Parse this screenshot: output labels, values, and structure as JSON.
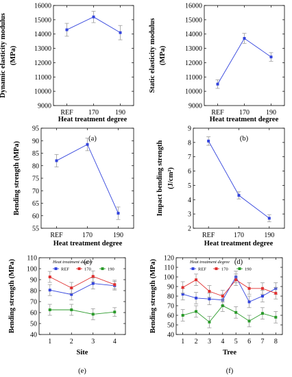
{
  "colors": {
    "series_blue": "#3344dd",
    "series_red": "#e03030",
    "series_green": "#2a9a2a",
    "error_bar": "#9a9a9a",
    "axis": "#000000"
  },
  "chart_data": [
    {
      "panel_label": "(a)",
      "type": "line",
      "xlabel": "Heat treatment degree",
      "ylabel": "Dynamic elasticity modulus (MPa)",
      "ylabel_lines": [
        "Dynamic elasticity modulus",
        "(MPa)"
      ],
      "categories": [
        "REF",
        "170",
        "190"
      ],
      "ylim": [
        9000,
        16000
      ],
      "yticks": [
        9000,
        10000,
        11000,
        12000,
        13000,
        14000,
        15000,
        16000
      ],
      "series": [
        {
          "values": [
            14300,
            15200,
            14100
          ],
          "err": [
            450,
            400,
            500
          ]
        }
      ]
    },
    {
      "panel_label": "(b)",
      "type": "line",
      "xlabel": "Heat treatment degree",
      "ylabel": "Static elasticity modulus (MPa)",
      "ylabel_lines": [
        "Static elasticity modulus",
        "(MPa)"
      ],
      "categories": [
        "REF",
        "170",
        "190"
      ],
      "ylim": [
        9000,
        16000
      ],
      "yticks": [
        9000,
        10000,
        11000,
        12000,
        13000,
        14000,
        15000,
        16000
      ],
      "series": [
        {
          "values": [
            10500,
            13700,
            12400
          ],
          "err": [
            300,
            350,
            300
          ]
        }
      ]
    },
    {
      "panel_label": "(c)",
      "type": "line",
      "xlabel": "Heat treatment degree",
      "ylabel": "Bending strength (MPa)",
      "ylabel_lines": [
        "Bending strength (MPa)"
      ],
      "categories": [
        "REF",
        "170",
        "190"
      ],
      "ylim": [
        55,
        95
      ],
      "yticks": [
        55,
        60,
        65,
        70,
        75,
        80,
        85,
        90,
        95
      ],
      "series": [
        {
          "values": [
            82,
            88.5,
            61
          ],
          "err": [
            2.5,
            2.5,
            2.5
          ]
        }
      ]
    },
    {
      "panel_label": "(d)",
      "type": "line",
      "xlabel": "Heat treatment degree",
      "ylabel": "Impact bending strength (J/cm2)",
      "ylabel_lines": [
        "Impact bending strength",
        "(J/cm²)"
      ],
      "categories": [
        "REF",
        "170",
        "190"
      ],
      "ylim": [
        2,
        9
      ],
      "yticks": [
        2,
        3,
        4,
        5,
        6,
        7,
        8,
        9
      ],
      "series": [
        {
          "values": [
            8.1,
            4.3,
            2.7
          ],
          "err": [
            0.3,
            0.25,
            0.25
          ]
        }
      ]
    },
    {
      "panel_label": "(e)",
      "type": "line",
      "xlabel": "Site",
      "ylabel": "Bending strength (MPa)",
      "ylabel_lines": [
        "Bending strength (MPa)"
      ],
      "x": [
        1,
        2,
        3,
        4
      ],
      "xticks": [
        1,
        2,
        3,
        4
      ],
      "xlim": [
        0.5,
        4.5
      ],
      "ylim": [
        40,
        110
      ],
      "yticks": [
        40,
        50,
        60,
        70,
        80,
        90,
        100,
        110
      ],
      "legend_title": "Heat treatment degree",
      "legend_position": "top-left",
      "series": [
        {
          "name": "REF",
          "color_key": "series_blue",
          "values": [
            80.5,
            76.5,
            86.5,
            84.5
          ],
          "err": [
            5,
            5,
            5,
            4
          ]
        },
        {
          "name": "170",
          "color_key": "series_red",
          "values": [
            92.5,
            82.5,
            93,
            85.5
          ],
          "err": [
            5,
            5,
            5,
            4
          ]
        },
        {
          "name": "190",
          "color_key": "series_green",
          "values": [
            62.5,
            62.5,
            58.5,
            60.5
          ],
          "err": [
            5,
            5,
            5,
            4
          ]
        }
      ]
    },
    {
      "panel_label": "(f)",
      "type": "line",
      "xlabel": "Tree",
      "ylabel": "Bending strength (MPa)",
      "ylabel_lines": [
        "Bending strength (MPa)"
      ],
      "x": [
        1,
        2,
        3,
        4,
        5,
        6,
        7,
        8
      ],
      "xticks": [
        1,
        2,
        3,
        4,
        5,
        6,
        7,
        8
      ],
      "xlim": [
        0.5,
        8.5
      ],
      "ylim": [
        40,
        120
      ],
      "yticks": [
        40,
        50,
        60,
        70,
        80,
        90,
        100,
        110,
        120
      ],
      "legend_title": "Heat treatment degree",
      "legend_position": "top-left",
      "series": [
        {
          "name": "REF",
          "color_key": "series_blue",
          "values": [
            82,
            78,
            77,
            76,
            100,
            74,
            80,
            88
          ],
          "err": [
            6,
            6,
            6,
            6,
            6,
            6,
            6,
            6
          ]
        },
        {
          "name": "170",
          "color_key": "series_red",
          "values": [
            89,
            97,
            85,
            80,
            97,
            88,
            88,
            83
          ],
          "err": [
            6,
            6,
            6,
            6,
            6,
            6,
            6,
            6
          ]
        },
        {
          "name": "190",
          "color_key": "series_green",
          "values": [
            60,
            64,
            53,
            70,
            63,
            54,
            62,
            58
          ],
          "err": [
            6,
            6,
            6,
            6,
            6,
            6,
            6,
            6
          ]
        }
      ]
    }
  ]
}
